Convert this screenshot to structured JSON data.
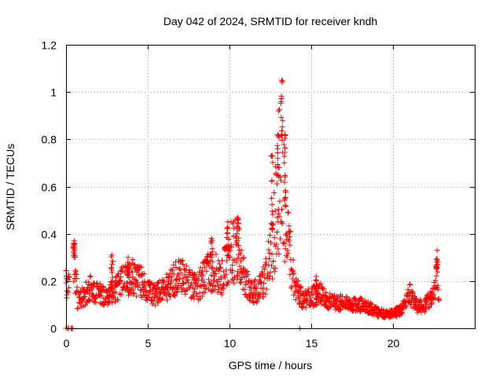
{
  "chart_data": {
    "type": "scatter",
    "title": "Day 042 of 2024, SRMTID for receiver kndh",
    "xlabel": "GPS time / hours",
    "ylabel": "SRMTID / TECUs",
    "xlim": [
      0,
      25
    ],
    "ylim": [
      0,
      1.2
    ],
    "xticks": [
      0,
      5,
      10,
      15,
      20
    ],
    "xtick_labels": [
      "0",
      "5",
      "10",
      "15",
      "20"
    ],
    "yticks": [
      0,
      0.2,
      0.4,
      0.6,
      0.8,
      1.0,
      1.2
    ],
    "ytick_labels": [
      "0",
      "0.2",
      "0.4",
      "0.6",
      "0.8",
      "1",
      "1.2"
    ],
    "grid": true,
    "marker": "+",
    "series": [
      {
        "name": "SRMTID",
        "color": "#ff0000",
        "profile": [
          {
            "x": 0.0,
            "y": 0.19
          },
          {
            "x": 0.3,
            "y": 0.17
          },
          {
            "x": 0.5,
            "y": 0.3
          },
          {
            "x": 0.7,
            "y": 0.12
          },
          {
            "x": 1.0,
            "y": 0.13
          },
          {
            "x": 1.5,
            "y": 0.17
          },
          {
            "x": 2.0,
            "y": 0.15
          },
          {
            "x": 2.5,
            "y": 0.14
          },
          {
            "x": 3.0,
            "y": 0.16
          },
          {
            "x": 3.5,
            "y": 0.2
          },
          {
            "x": 4.0,
            "y": 0.22
          },
          {
            "x": 4.5,
            "y": 0.2
          },
          {
            "x": 5.0,
            "y": 0.16
          },
          {
            "x": 5.5,
            "y": 0.14
          },
          {
            "x": 6.0,
            "y": 0.17
          },
          {
            "x": 6.5,
            "y": 0.2
          },
          {
            "x": 7.0,
            "y": 0.22
          },
          {
            "x": 7.5,
            "y": 0.2
          },
          {
            "x": 8.0,
            "y": 0.17
          },
          {
            "x": 8.5,
            "y": 0.22
          },
          {
            "x": 9.0,
            "y": 0.25
          },
          {
            "x": 9.5,
            "y": 0.21
          },
          {
            "x": 10.0,
            "y": 0.32
          },
          {
            "x": 10.5,
            "y": 0.33
          },
          {
            "x": 11.0,
            "y": 0.2
          },
          {
            "x": 11.5,
            "y": 0.15
          },
          {
            "x": 12.0,
            "y": 0.18
          },
          {
            "x": 12.5,
            "y": 0.3
          },
          {
            "x": 12.8,
            "y": 0.45
          },
          {
            "x": 13.1,
            "y": 0.7
          },
          {
            "x": 13.3,
            "y": 0.6
          },
          {
            "x": 13.6,
            "y": 0.35
          },
          {
            "x": 14.0,
            "y": 0.18
          },
          {
            "x": 14.5,
            "y": 0.12
          },
          {
            "x": 15.0,
            "y": 0.13
          },
          {
            "x": 15.5,
            "y": 0.15
          },
          {
            "x": 16.0,
            "y": 0.12
          },
          {
            "x": 16.5,
            "y": 0.11
          },
          {
            "x": 17.0,
            "y": 0.11
          },
          {
            "x": 17.5,
            "y": 0.1
          },
          {
            "x": 18.0,
            "y": 0.1
          },
          {
            "x": 18.5,
            "y": 0.09
          },
          {
            "x": 19.0,
            "y": 0.07
          },
          {
            "x": 19.5,
            "y": 0.06
          },
          {
            "x": 20.0,
            "y": 0.06
          },
          {
            "x": 20.5,
            "y": 0.08
          },
          {
            "x": 21.0,
            "y": 0.15
          },
          {
            "x": 21.5,
            "y": 0.09
          },
          {
            "x": 22.0,
            "y": 0.1
          },
          {
            "x": 22.5,
            "y": 0.14
          },
          {
            "x": 22.7,
            "y": 0.25
          },
          {
            "x": 22.8,
            "y": 0.12
          }
        ],
        "gaps": [
          [
            0.2,
            0.45
          ]
        ],
        "spikes": [
          {
            "x": 0.5,
            "y": 0.37
          },
          {
            "x": 2.8,
            "y": 0.31
          },
          {
            "x": 3.8,
            "y": 0.3
          },
          {
            "x": 8.9,
            "y": 0.38
          },
          {
            "x": 9.9,
            "y": 0.45
          },
          {
            "x": 10.5,
            "y": 0.47
          },
          {
            "x": 12.6,
            "y": 0.73
          },
          {
            "x": 13.0,
            "y": 0.92
          },
          {
            "x": 13.2,
            "y": 1.05
          },
          {
            "x": 13.4,
            "y": 0.82
          },
          {
            "x": 15.3,
            "y": 0.22
          },
          {
            "x": 22.7,
            "y": 0.33
          }
        ],
        "outliers": [
          {
            "x": 0.0,
            "y": 0.0
          },
          {
            "x": 0.1,
            "y": 0.0
          },
          {
            "x": 0.15,
            "y": 0.0
          },
          {
            "x": 0.3,
            "y": 0.0
          },
          {
            "x": 0.35,
            "y": 0.0
          },
          {
            "x": 0.4,
            "y": 0.0
          },
          {
            "x": 14.3,
            "y": 0.0
          }
        ]
      }
    ]
  }
}
